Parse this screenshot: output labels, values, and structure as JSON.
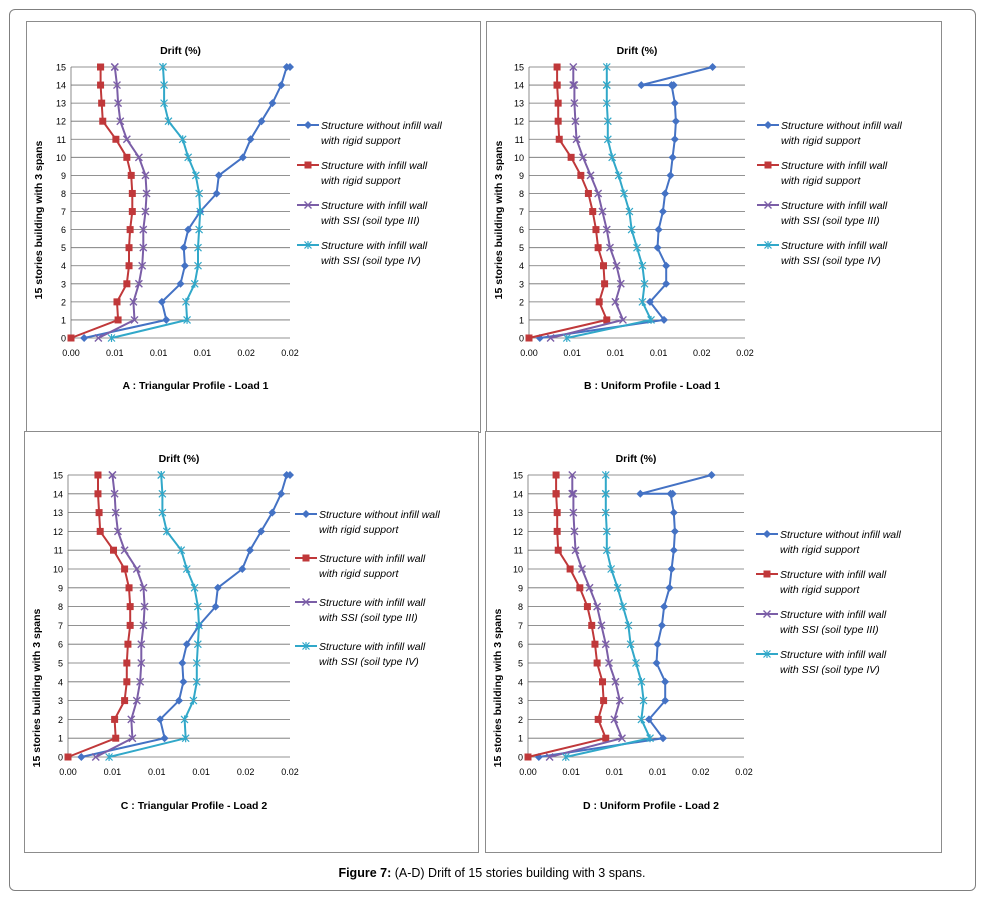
{
  "figure_caption": {
    "label": "Figure 7:",
    "text": "(A-D) Drift of 15 stories building with 3 spans."
  },
  "colors": {
    "series_1": "#4472c4",
    "series_2": "#c0383a",
    "series_3": "#7b5ea7",
    "series_4": "#31a8c9",
    "grid": "#6f6f6f"
  },
  "chart_data": [
    {
      "id": "a",
      "type": "line",
      "title": "Drift (%)",
      "subtitle": "A : Triangular  Profile - Load 1",
      "ylabel": "15 stories building with 3 spans",
      "xlabel": "",
      "x_tick_labels": [
        "0.00",
        "0.01",
        "0.01",
        "0.01",
        "0.02",
        "0.02"
      ],
      "y_tick_labels": [
        "0",
        "1",
        "2",
        "3",
        "4",
        "5",
        "6",
        "7",
        "8",
        "9",
        "10",
        "11",
        "12",
        "13",
        "14",
        "15"
      ],
      "xlim": [
        0,
        0.02
      ],
      "ylim": [
        0,
        15
      ],
      "grid": "horizontal",
      "legend": "right",
      "series": [
        {
          "name": "Structure without infill wall with rigid support",
          "marker": "diamond",
          "x": [
            0.0012,
            0.0087,
            0.0083,
            0.01,
            0.0104,
            0.0103,
            0.0107,
            0.0118,
            0.0133,
            0.0135,
            0.0157,
            0.0164,
            0.0174,
            0.0184,
            0.0192,
            0.0197,
            0.02
          ],
          "y": [
            0,
            1,
            2,
            3,
            4,
            5,
            6,
            7,
            8,
            9,
            10,
            11,
            12,
            13,
            14,
            15,
            15
          ]
        },
        {
          "name": "Structure with infill wall with rigid support",
          "marker": "square",
          "x": [
            0.0,
            0.0043,
            0.0042,
            0.0051,
            0.0053,
            0.0053,
            0.0054,
            0.0056,
            0.0056,
            0.0055,
            0.0051,
            0.0041,
            0.0029,
            0.0028,
            0.0027,
            0.0027,
            0.0027
          ],
          "y": [
            0,
            1,
            2,
            3,
            4,
            5,
            6,
            7,
            8,
            9,
            10,
            11,
            12,
            13,
            14,
            15,
            15
          ]
        },
        {
          "name": "Structure with infill wall with SSI (soil type III)",
          "marker": "cross",
          "x": [
            0.0025,
            0.0058,
            0.0057,
            0.0062,
            0.0065,
            0.0066,
            0.0066,
            0.0068,
            0.0069,
            0.0068,
            0.0062,
            0.0051,
            0.0045,
            0.0043,
            0.0042,
            0.004,
            0.004
          ],
          "y": [
            0,
            1,
            2,
            3,
            4,
            5,
            6,
            7,
            8,
            9,
            10,
            11,
            12,
            13,
            14,
            15,
            15
          ]
        },
        {
          "name": "Structure with infill wall with SSI (soil type IV)",
          "marker": "star",
          "x": [
            0.0037,
            0.0106,
            0.0105,
            0.0113,
            0.0116,
            0.0116,
            0.0117,
            0.0118,
            0.0117,
            0.0114,
            0.0107,
            0.0102,
            0.0089,
            0.0085,
            0.0085,
            0.0084,
            0.0084
          ],
          "y": [
            0,
            1,
            2,
            3,
            4,
            5,
            6,
            7,
            8,
            9,
            10,
            11,
            12,
            13,
            14,
            15,
            15
          ]
        }
      ]
    },
    {
      "id": "b",
      "type": "line",
      "title": "Drift (%)",
      "subtitle": "B : Uniform Profile - Load 1",
      "ylabel": "15 stories building with 3 spans",
      "xlabel": "",
      "x_tick_labels": [
        "0.00",
        "0.01",
        "0.01",
        "0.01",
        "0.02",
        "0.02"
      ],
      "y_tick_labels": [
        "0",
        "1",
        "2",
        "3",
        "4",
        "5",
        "6",
        "7",
        "8",
        "9",
        "10",
        "11",
        "12",
        "13",
        "14",
        "15"
      ],
      "xlim": [
        0,
        0.02
      ],
      "ylim": [
        0,
        15
      ],
      "grid": "horizontal",
      "legend": "right",
      "series": [
        {
          "name": "Structure without infill wall with rigid support",
          "marker": "diamond",
          "x": [
            0.001,
            0.0125,
            0.0112,
            0.0127,
            0.0127,
            0.0119,
            0.012,
            0.0124,
            0.0126,
            0.0131,
            0.0133,
            0.0135,
            0.0136,
            0.0135,
            0.0132,
            0.0134,
            0.0104,
            0.017
          ],
          "y": [
            0,
            1,
            2,
            3,
            4,
            5,
            6,
            7,
            8,
            9,
            10,
            11,
            12,
            13,
            14,
            14,
            14,
            15
          ]
        },
        {
          "name": "Structure with infill wall with rigid support",
          "marker": "square",
          "x": [
            0.0,
            0.0072,
            0.0065,
            0.007,
            0.0069,
            0.0064,
            0.0062,
            0.0059,
            0.0055,
            0.0048,
            0.0039,
            0.0028,
            0.0027,
            0.0027,
            0.0026,
            0.0026,
            0.0026,
            0.0026
          ],
          "y": [
            0,
            1,
            2,
            3,
            4,
            5,
            6,
            7,
            8,
            9,
            10,
            11,
            12,
            13,
            14,
            14,
            14,
            15
          ]
        },
        {
          "name": "Structure with infill wall with SSI (soil type III)",
          "marker": "cross",
          "x": [
            0.002,
            0.0087,
            0.008,
            0.0085,
            0.0081,
            0.0075,
            0.0072,
            0.0068,
            0.0064,
            0.0057,
            0.005,
            0.0044,
            0.0043,
            0.0042,
            0.0042,
            0.0041,
            0.0041,
            0.0041
          ],
          "y": [
            0,
            1,
            2,
            3,
            4,
            5,
            6,
            7,
            8,
            9,
            10,
            11,
            12,
            13,
            14,
            14,
            14,
            15
          ]
        },
        {
          "name": "Structure with infill wall with SSI (soil type IV)",
          "marker": "star",
          "x": [
            0.0035,
            0.0113,
            0.0105,
            0.0107,
            0.0105,
            0.01,
            0.0095,
            0.0093,
            0.0088,
            0.0083,
            0.0077,
            0.0073,
            0.0073,
            0.0072,
            0.0072,
            0.0072,
            0.0072,
            0.0072
          ],
          "y": [
            0,
            1,
            2,
            3,
            4,
            5,
            6,
            7,
            8,
            9,
            10,
            11,
            12,
            13,
            14,
            14,
            14,
            15
          ]
        }
      ]
    },
    {
      "id": "c",
      "type": "line",
      "title": "Drift (%)",
      "subtitle": "C : Triangular  Profile - Load 2",
      "ylabel": "15 stories building with 3 spans",
      "xlabel": "",
      "x_tick_labels": [
        "0.00",
        "0.01",
        "0.01",
        "0.01",
        "0.02",
        "0.02"
      ],
      "y_tick_labels": [
        "0",
        "1",
        "2",
        "3",
        "4",
        "5",
        "6",
        "7",
        "8",
        "9",
        "10",
        "11",
        "12",
        "13",
        "14",
        "15"
      ],
      "xlim": [
        0,
        0.02
      ],
      "ylim": [
        0,
        15
      ],
      "grid": "horizontal",
      "legend": "right",
      "series": [
        {
          "name": "Structure without infill wall with rigid support",
          "marker": "diamond",
          "x": [
            0.0012,
            0.0087,
            0.0083,
            0.01,
            0.0104,
            0.0103,
            0.0107,
            0.0118,
            0.0133,
            0.0135,
            0.0157,
            0.0164,
            0.0174,
            0.0184,
            0.0192,
            0.0197,
            0.02
          ],
          "y": [
            0,
            1,
            2,
            3,
            4,
            5,
            6,
            7,
            8,
            9,
            10,
            11,
            12,
            13,
            14,
            15,
            15
          ]
        },
        {
          "name": "Structure with infill wall with rigid support",
          "marker": "square",
          "x": [
            0.0,
            0.0043,
            0.0042,
            0.0051,
            0.0053,
            0.0053,
            0.0054,
            0.0056,
            0.0056,
            0.0055,
            0.0051,
            0.0041,
            0.0029,
            0.0028,
            0.0027,
            0.0027,
            0.0027
          ],
          "y": [
            0,
            1,
            2,
            3,
            4,
            5,
            6,
            7,
            8,
            9,
            10,
            11,
            12,
            13,
            14,
            15,
            15
          ]
        },
        {
          "name": "Structure with infill wall with SSI (soil type III)",
          "marker": "cross",
          "x": [
            0.0025,
            0.0058,
            0.0057,
            0.0062,
            0.0065,
            0.0066,
            0.0066,
            0.0068,
            0.0069,
            0.0068,
            0.0062,
            0.0051,
            0.0045,
            0.0043,
            0.0042,
            0.004,
            0.004
          ],
          "y": [
            0,
            1,
            2,
            3,
            4,
            5,
            6,
            7,
            8,
            9,
            10,
            11,
            12,
            13,
            14,
            15,
            15
          ]
        },
        {
          "name": "Structure with infill wall with SSI (soil type IV)",
          "marker": "star",
          "x": [
            0.0037,
            0.0106,
            0.0105,
            0.0113,
            0.0116,
            0.0116,
            0.0117,
            0.0118,
            0.0117,
            0.0114,
            0.0107,
            0.0102,
            0.0089,
            0.0085,
            0.0085,
            0.0084,
            0.0084
          ],
          "y": [
            0,
            1,
            2,
            3,
            4,
            5,
            6,
            7,
            8,
            9,
            10,
            11,
            12,
            13,
            14,
            15,
            15
          ]
        }
      ]
    },
    {
      "id": "d",
      "type": "line",
      "title": "Drift (%)",
      "subtitle": "D : Uniform Profile - Load 2",
      "ylabel": "15 stories building with 3 spans",
      "xlabel": "",
      "x_tick_labels": [
        "0.00",
        "0.01",
        "0.01",
        "0.01",
        "0.02",
        "0.02"
      ],
      "y_tick_labels": [
        "0",
        "1",
        "2",
        "3",
        "4",
        "5",
        "6",
        "7",
        "8",
        "9",
        "10",
        "11",
        "12",
        "13",
        "14",
        "15"
      ],
      "xlim": [
        0,
        0.02
      ],
      "ylim": [
        0,
        15
      ],
      "grid": "horizontal",
      "legend": "right",
      "series": [
        {
          "name": "Structure without infill wall with rigid support",
          "marker": "diamond",
          "x": [
            0.001,
            0.0125,
            0.0112,
            0.0127,
            0.0127,
            0.0119,
            0.012,
            0.0124,
            0.0126,
            0.0131,
            0.0133,
            0.0135,
            0.0136,
            0.0135,
            0.0132,
            0.0134,
            0.0104,
            0.017
          ],
          "y": [
            0,
            1,
            2,
            3,
            4,
            5,
            6,
            7,
            8,
            9,
            10,
            11,
            12,
            13,
            14,
            14,
            14,
            15
          ]
        },
        {
          "name": "Structure with infill wall with rigid support",
          "marker": "square",
          "x": [
            0.0,
            0.0072,
            0.0065,
            0.007,
            0.0069,
            0.0064,
            0.0062,
            0.0059,
            0.0055,
            0.0048,
            0.0039,
            0.0028,
            0.0027,
            0.0027,
            0.0026,
            0.0026,
            0.0026,
            0.0026
          ],
          "y": [
            0,
            1,
            2,
            3,
            4,
            5,
            6,
            7,
            8,
            9,
            10,
            11,
            12,
            13,
            14,
            14,
            14,
            15
          ]
        },
        {
          "name": "Structure with infill wall with SSI (soil type III)",
          "marker": "cross",
          "x": [
            0.002,
            0.0087,
            0.008,
            0.0085,
            0.0081,
            0.0075,
            0.0072,
            0.0068,
            0.0064,
            0.0057,
            0.005,
            0.0044,
            0.0043,
            0.0042,
            0.0042,
            0.0041,
            0.0041,
            0.0041
          ],
          "y": [
            0,
            1,
            2,
            3,
            4,
            5,
            6,
            7,
            8,
            9,
            10,
            11,
            12,
            13,
            14,
            14,
            14,
            15
          ]
        },
        {
          "name": "Structure with infill wall with SSI (soil type IV)",
          "marker": "star",
          "x": [
            0.0035,
            0.0113,
            0.0105,
            0.0107,
            0.0105,
            0.01,
            0.0095,
            0.0093,
            0.0088,
            0.0083,
            0.0077,
            0.0073,
            0.0073,
            0.0072,
            0.0072,
            0.0072,
            0.0072,
            0.0072
          ],
          "y": [
            0,
            1,
            2,
            3,
            4,
            5,
            6,
            7,
            8,
            9,
            10,
            11,
            12,
            13,
            14,
            14,
            14,
            15
          ]
        }
      ]
    }
  ],
  "legend_lines": [
    [
      "Structure without infill wall",
      "with rigid support"
    ],
    [
      "Structure with infill wall",
      "with rigid support"
    ],
    [
      "Structure with infill wall",
      "with SSI (soil type III)"
    ],
    [
      "Structure with infill wall",
      "with SSI (soil type IV)"
    ]
  ]
}
